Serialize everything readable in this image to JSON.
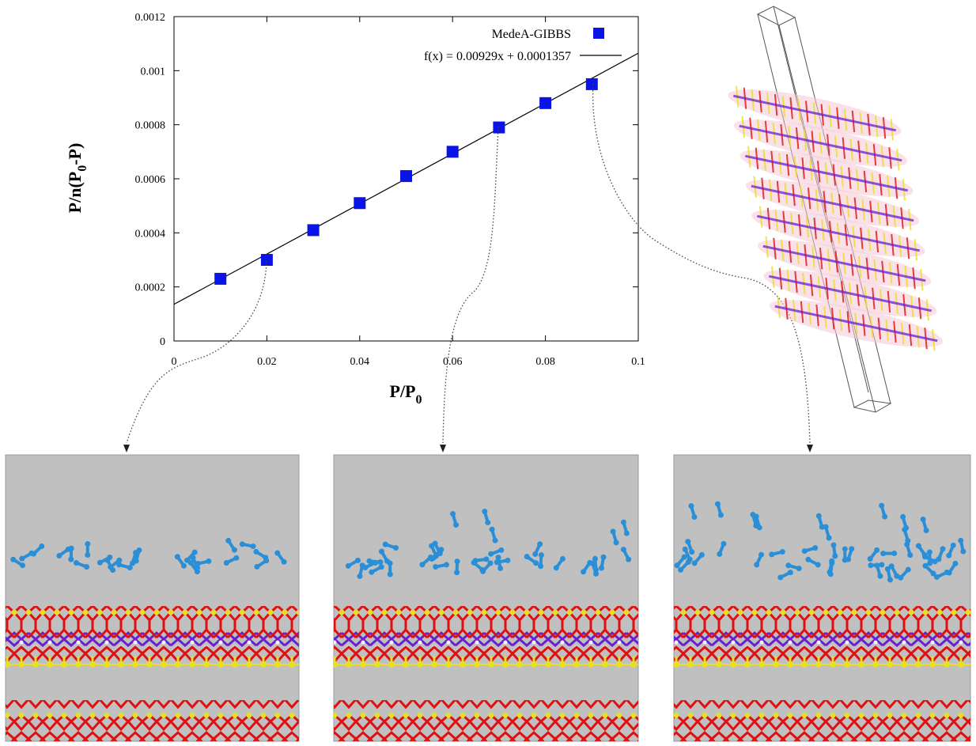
{
  "chart_data": {
    "type": "scatter",
    "xlabel": "P/P",
    "xlabel_sub": "0",
    "ylabel_parts": [
      "P/n(P",
      "0",
      "-P)"
    ],
    "xlim": [
      0,
      0.1
    ],
    "ylim": [
      0,
      0.0012
    ],
    "x_ticks": [
      0,
      0.02,
      0.04,
      0.06,
      0.08,
      0.1
    ],
    "x_tick_labels": [
      "0",
      "0.02",
      "0.04",
      "0.06",
      "0.08",
      "0.1"
    ],
    "y_ticks": [
      0,
      0.0002,
      0.0004,
      0.0006,
      0.0008,
      0.001,
      0.0012
    ],
    "y_tick_labels": [
      "0",
      "0.0002",
      "0.0004",
      "0.0006",
      "0.0008",
      "0.001",
      "0.0012"
    ],
    "series": [
      {
        "name": "MedeA-GIBBS",
        "marker": "square",
        "color": "#0a14e6",
        "x": [
          0.01,
          0.02,
          0.03,
          0.04,
          0.05,
          0.06,
          0.07,
          0.08,
          0.09
        ],
        "y": [
          0.00023,
          0.0003,
          0.00041,
          0.00051,
          0.00061,
          0.0007,
          0.00079,
          0.00088,
          0.00095
        ]
      }
    ],
    "fit": {
      "label": "f(x) = 0.00929x + 0.0001357",
      "slope": 0.00929,
      "intercept": 0.0001357,
      "color": "#000000"
    },
    "legend_position": "top-right",
    "callouts": [
      0.02,
      0.07,
      0.09
    ]
  },
  "colors": {
    "panel_background": "#c0c0c0",
    "adsorbate": "#2a8fd6",
    "oxygen": "#e01010",
    "silicon": "#e8e020",
    "bridge": "#6a1fd0",
    "hydrogen": "#f4f4f4"
  }
}
